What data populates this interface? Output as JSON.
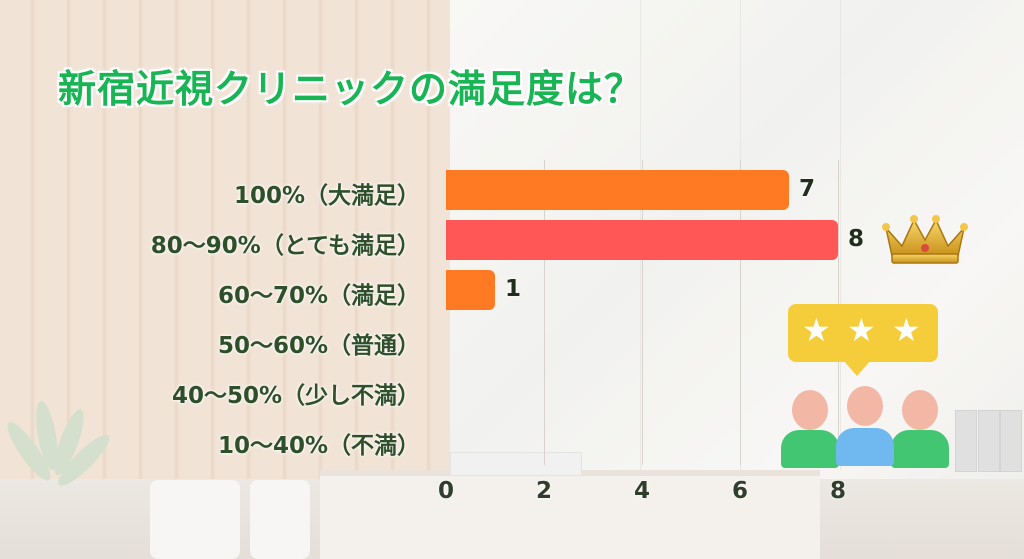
{
  "title": "新宿近視クリニックの満足度は？",
  "chart_data": {
    "type": "bar",
    "orientation": "horizontal",
    "categories": [
      "100%（大満足）",
      "80〜90%（とても満足）",
      "60〜70%（満足）",
      "50〜60%（普通）",
      "40〜50%（少し不満）",
      "10〜40%（不満）"
    ],
    "values": [
      7,
      8,
      1,
      0,
      0,
      0
    ],
    "value_labels": [
      "7",
      "8",
      "1",
      "",
      "",
      ""
    ],
    "bar_colors": [
      "#ff7a22",
      "#ff5656",
      "#ff7a22",
      "#ff7a22",
      "#ff7a22",
      "#ff7a22"
    ],
    "xlim": [
      0,
      8
    ],
    "xticks": [
      0,
      2,
      4,
      6,
      8
    ],
    "xtick_labels": [
      "0",
      "2",
      "4",
      "6",
      "8"
    ],
    "grid": true
  },
  "decorations": {
    "crown_icon": "crown-icon",
    "review_icon": "three-star-review-icon",
    "title_color": "#19b554",
    "bubble_color": "#f5cd3b"
  }
}
